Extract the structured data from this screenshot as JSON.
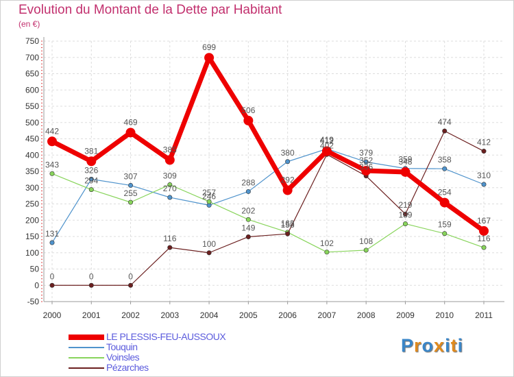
{
  "title": "Evolution du Montant de la Dette par Habitant",
  "subtitle": "(en €)",
  "logo": {
    "text": "Proxiti",
    "colors": [
      "#3a86c8",
      "#e08a1e",
      "#3a86c8",
      "#e08a1e",
      "#3a86c8",
      "#e08a1e",
      "#3a86c8"
    ]
  },
  "chart_data": {
    "type": "line",
    "title": "Evolution du Montant de la Dette par Habitant",
    "ylabel": "(en €)",
    "xlabel": "",
    "categories": [
      "2000",
      "2001",
      "2002",
      "2003",
      "2004",
      "2005",
      "2006",
      "2007",
      "2008",
      "2009",
      "2010",
      "2011"
    ],
    "yticks": [
      -50,
      0,
      50,
      100,
      150,
      200,
      250,
      300,
      350,
      400,
      450,
      500,
      550,
      600,
      650,
      700,
      750
    ],
    "ylim": [
      -50,
      750
    ],
    "grid": true,
    "legend": "bottom-left",
    "series": [
      {
        "name": "LE PLESSIS-FEU-AUSSOUX",
        "color": "#ee0000",
        "values": [
          442,
          381,
          469,
          385,
          699,
          506,
          292,
          412,
          352,
          348,
          254,
          167
        ]
      },
      {
        "name": "Touquin",
        "color": "#4f93cc",
        "values": [
          131,
          326,
          307,
          270,
          246,
          288,
          380,
          419,
          379,
          359,
          358,
          310
        ]
      },
      {
        "name": "Voinsles",
        "color": "#88d45b",
        "values": [
          343,
          294,
          255,
          309,
          257,
          202,
          163,
          102,
          108,
          189,
          159,
          116
        ]
      },
      {
        "name": "Pézarches",
        "color": "#6b1f1f",
        "values": [
          0,
          0,
          0,
          116,
          100,
          149,
          158,
          402,
          336,
          219,
          474,
          412
        ]
      }
    ]
  }
}
